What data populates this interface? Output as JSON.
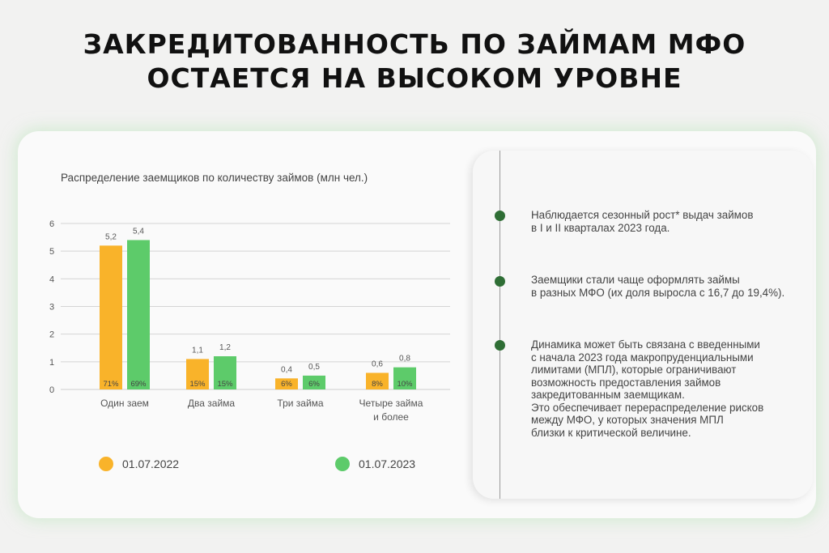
{
  "header": {
    "title_line1": "ЗАКРЕДИТОВАННОСТЬ ПО ЗАЙМАМ МФО",
    "title_line2": "ОСТАЕТСЯ НА ВЫСОКОМ УРОВНЕ"
  },
  "chart_data": {
    "type": "bar",
    "title": "Распределение заемщиков по количеству займов (млн чел.)",
    "categories": [
      [
        "Один заем"
      ],
      [
        "Два займа"
      ],
      [
        "Три займа"
      ],
      [
        "Четыре займа",
        "и более"
      ]
    ],
    "series": [
      {
        "name": "01.07.2022",
        "color": "#f9b32a",
        "values": [
          5.2,
          1.1,
          0.4,
          0.6
        ],
        "value_labels": [
          "5,2",
          "1,1",
          "0,4",
          "0,6"
        ],
        "share_labels": [
          "71%",
          "15%",
          "6%",
          "8%"
        ]
      },
      {
        "name": "01.07.2023",
        "color": "#5dcb6a",
        "values": [
          5.4,
          1.2,
          0.5,
          0.8
        ],
        "value_labels": [
          "5,4",
          "1,2",
          "0,5",
          "0,8"
        ],
        "share_labels": [
          "69%",
          "15%",
          "6%",
          "10%"
        ]
      }
    ],
    "yticks": [
      "0",
      "1",
      "2",
      "3",
      "4",
      "5",
      "6"
    ],
    "ylim": [
      0,
      6
    ],
    "grid": true,
    "legend": "bottom"
  },
  "notes": [
    {
      "lines": [
        "Наблюдается сезонный рост* выдач займов",
        "в I и II кварталах 2023 года."
      ]
    },
    {
      "lines": [
        "Заемщики стали чаще оформлять займы",
        "в разных МФО (их доля выросла с 16,7 до 19,4%)."
      ]
    },
    {
      "lines": [
        "Динамика может быть связана с введенными",
        "с начала 2023 года макропруденциальными",
        "лимитами (МПЛ), которые ограничивают",
        "возможность предоставления займов",
        "закредитованным заемщикам.",
        "Это обеспечивает перераспределение рисков",
        "между МФО, у которых значения МПЛ",
        "близки к критической величине."
      ]
    }
  ]
}
